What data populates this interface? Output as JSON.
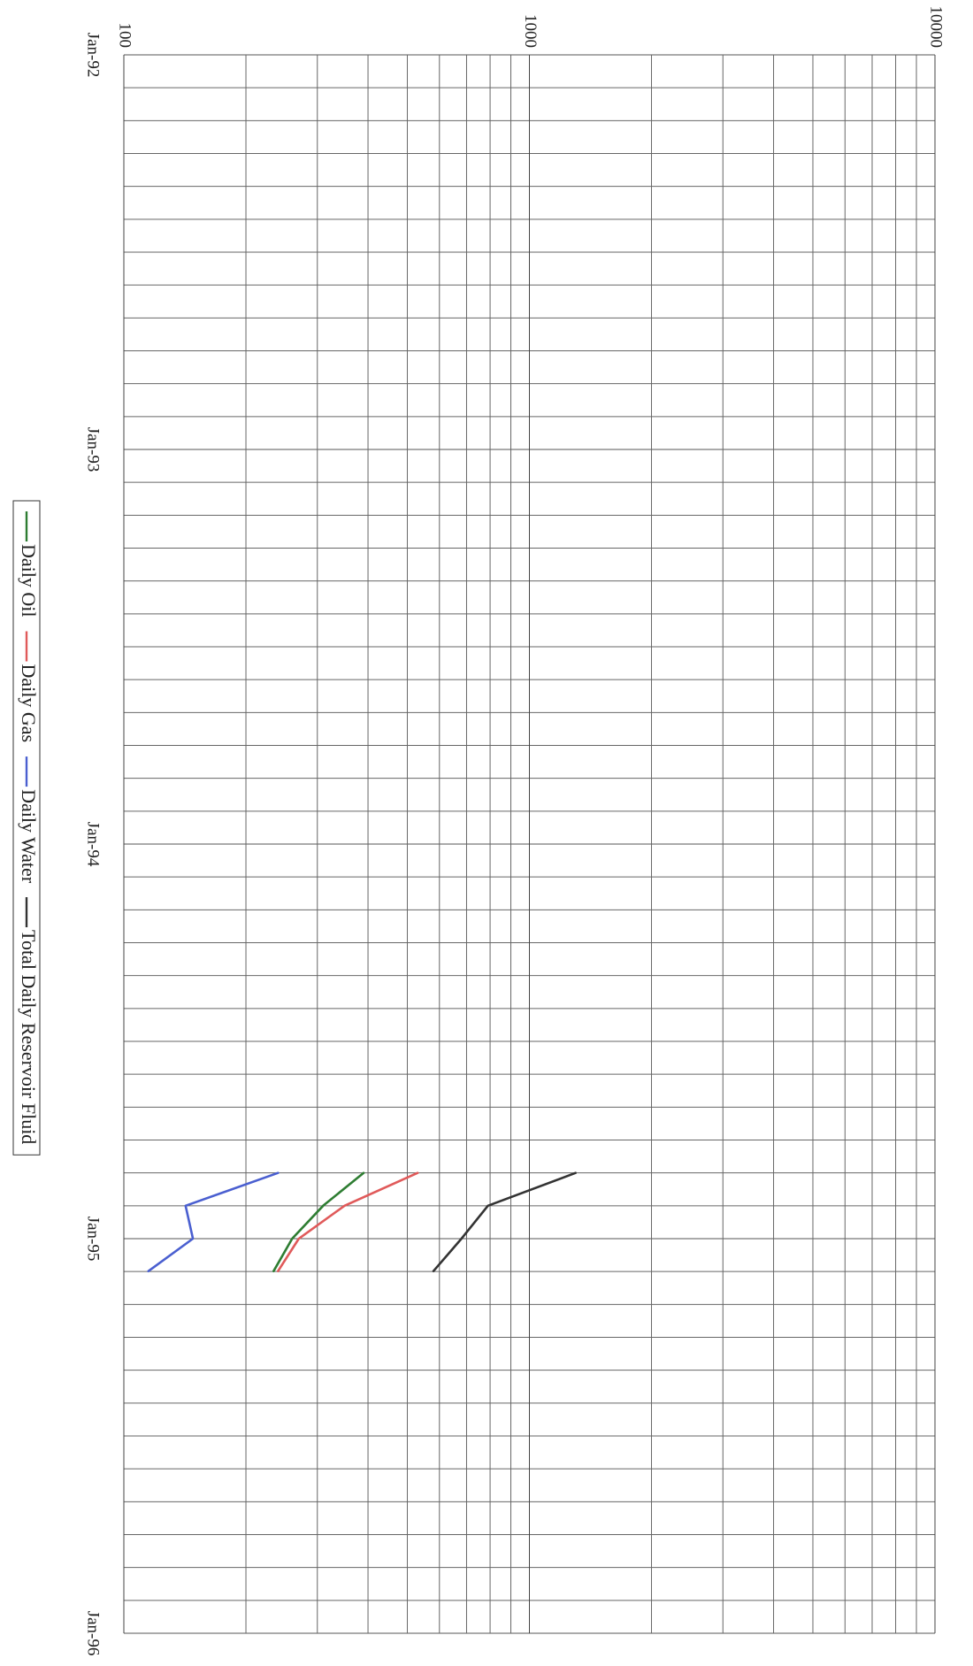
{
  "chart_data": {
    "type": "line",
    "orientation": "rotated-90-clockwise",
    "x_axis": {
      "scale": "time",
      "range": [
        "1992-01-01",
        "1996-01-01"
      ],
      "tick_labels": [
        "Jan-92",
        "Jan-93",
        "Jan-94",
        "Jan-95",
        "Jan-96"
      ],
      "minor_gridlines": "monthly"
    },
    "y_axis": {
      "scale": "log",
      "range": [
        100,
        10000
      ],
      "tick_labels": [
        "100",
        "1000",
        "10000"
      ]
    },
    "grid": true,
    "legend_position": "left",
    "series": [
      {
        "name": "Daily Oil",
        "color": "#2e7d32",
        "points": [
          [
            "1995-01-31",
            234
          ],
          [
            "1995-01-01",
            260
          ],
          [
            "1994-12-01",
            310
          ],
          [
            "1994-11-01",
            390
          ]
        ]
      },
      {
        "name": "Daily Gas",
        "color": "#e05a5a",
        "points": [
          [
            "1995-01-31",
            240
          ],
          [
            "1995-01-01",
            270
          ],
          [
            "1994-12-01",
            350
          ],
          [
            "1994-11-01",
            530
          ]
        ]
      },
      {
        "name": "Daily Water",
        "color": "#4a5fd0",
        "points": [
          [
            "1995-01-31",
            115
          ],
          [
            "1995-01-01",
            148
          ],
          [
            "1994-12-01",
            142
          ],
          [
            "1994-11-01",
            240
          ]
        ]
      },
      {
        "name": "Total Daily Reservoir Fluid",
        "color": "#333333",
        "points": [
          [
            "1995-01-31",
            580
          ],
          [
            "1995-01-01",
            680
          ],
          [
            "1994-12-01",
            790
          ],
          [
            "1994-11-01",
            1300
          ]
        ]
      }
    ]
  }
}
